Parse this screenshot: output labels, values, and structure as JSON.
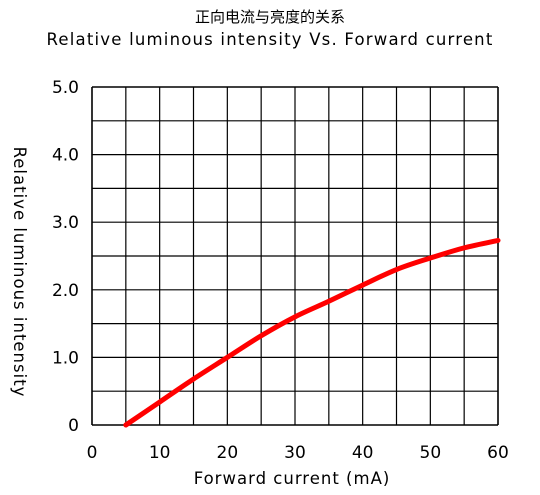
{
  "chart_data": {
    "type": "line",
    "title": "正向电流与亮度的关系",
    "subtitle": "Relative luminous intensity Vs. Forward current",
    "xlabel": "Forward current (mA)",
    "ylabel": "Relative luminous intensity",
    "xlim": [
      0,
      60
    ],
    "ylim": [
      0,
      5
    ],
    "x_ticks": [
      "0",
      "10",
      "20",
      "30",
      "40",
      "50",
      "60"
    ],
    "y_ticks": [
      "0",
      "1.0",
      "2.0",
      "3.0",
      "4.0",
      "5.0"
    ],
    "grid": true,
    "series": [
      {
        "color": "#ff0000",
        "x": [
          5,
          10,
          15,
          20,
          25,
          30,
          35,
          40,
          45,
          50,
          55,
          60
        ],
        "y": [
          0.0,
          0.34,
          0.68,
          1.0,
          1.32,
          1.6,
          1.83,
          2.07,
          2.3,
          2.47,
          2.62,
          2.73
        ]
      }
    ]
  }
}
